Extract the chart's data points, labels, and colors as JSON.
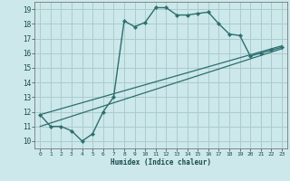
{
  "title": "",
  "xlabel": "Humidex (Indice chaleur)",
  "ylabel": "",
  "bg_color": "#cce8eb",
  "grid_color": "#aacccc",
  "line_color": "#2d6e6e",
  "xlim": [
    -0.5,
    23.5
  ],
  "ylim": [
    9.5,
    19.5
  ],
  "xticks": [
    0,
    1,
    2,
    3,
    4,
    5,
    6,
    7,
    8,
    9,
    10,
    11,
    12,
    13,
    14,
    15,
    16,
    17,
    18,
    19,
    20,
    21,
    22,
    23
  ],
  "yticks": [
    10,
    11,
    12,
    13,
    14,
    15,
    16,
    17,
    18,
    19
  ],
  "line1_x": [
    0,
    1,
    2,
    3,
    4,
    5,
    6,
    7,
    8,
    9,
    10,
    11,
    12,
    13,
    14,
    15,
    16,
    17,
    18,
    19,
    20,
    21,
    22,
    23
  ],
  "line1_y": [
    11.8,
    11.0,
    11.0,
    10.7,
    10.0,
    10.5,
    12.0,
    13.0,
    18.2,
    17.8,
    18.1,
    19.1,
    19.1,
    18.6,
    18.6,
    18.7,
    18.8,
    18.0,
    17.3,
    17.2,
    15.8,
    16.0,
    16.2,
    16.4
  ],
  "line2_x": [
    0,
    23
  ],
  "line2_y": [
    11.0,
    16.3
  ],
  "line3_x": [
    0,
    23
  ],
  "line3_y": [
    11.8,
    16.5
  ]
}
